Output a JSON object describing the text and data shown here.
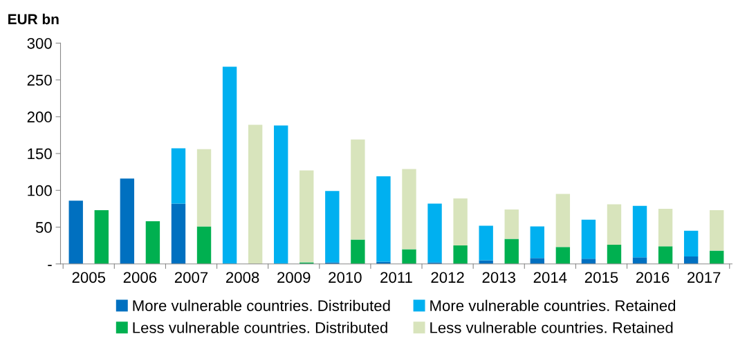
{
  "chart_data": {
    "type": "bar",
    "stacked": true,
    "ylabel": "EUR bn",
    "categories": [
      "2005",
      null,
      "2006",
      null,
      "2007",
      null,
      "2008",
      null,
      "2009",
      null,
      "2010",
      null,
      "2011",
      null,
      "2012",
      null,
      "2013",
      null,
      "2014",
      null,
      "2015",
      null,
      "2016",
      null,
      "2017",
      null
    ],
    "series": [
      {
        "name": "More vulnerable countries. Distributed",
        "color": "#0070c0",
        "values": [
          86,
          null,
          116,
          null,
          82,
          null,
          0,
          null,
          0,
          null,
          2,
          null,
          3,
          null,
          2,
          null,
          5,
          null,
          8,
          null,
          7,
          null,
          9,
          null,
          10,
          null
        ]
      },
      {
        "name": "More vulnerable countries. Retained",
        "color": "#00b0f0",
        "values": [
          0,
          null,
          0,
          null,
          75,
          null,
          268,
          null,
          188,
          null,
          97,
          null,
          116,
          null,
          80,
          null,
          47,
          null,
          43,
          null,
          53,
          null,
          70,
          null,
          35,
          null
        ]
      },
      {
        "name": "Less vulnerable countries. Distributed",
        "color": "#00b050",
        "values": [
          null,
          73,
          null,
          58,
          null,
          51,
          null,
          0,
          null,
          2,
          null,
          33,
          null,
          20,
          null,
          25,
          null,
          34,
          null,
          23,
          null,
          26,
          null,
          24,
          null,
          18
        ]
      },
      {
        "name": "Less vulnerable countries. Retained",
        "color": "#d8e4bc",
        "values": [
          null,
          0,
          null,
          0,
          null,
          105,
          null,
          189,
          null,
          125,
          null,
          136,
          null,
          109,
          null,
          64,
          null,
          40,
          null,
          72,
          null,
          55,
          null,
          51,
          null,
          55
        ]
      }
    ],
    "ylim": [
      0,
      300
    ],
    "yticks": [
      {
        "value": 0,
        "label": "-"
      },
      50,
      100,
      150,
      200,
      250,
      300
    ],
    "legend": "bottom",
    "grid": false
  }
}
